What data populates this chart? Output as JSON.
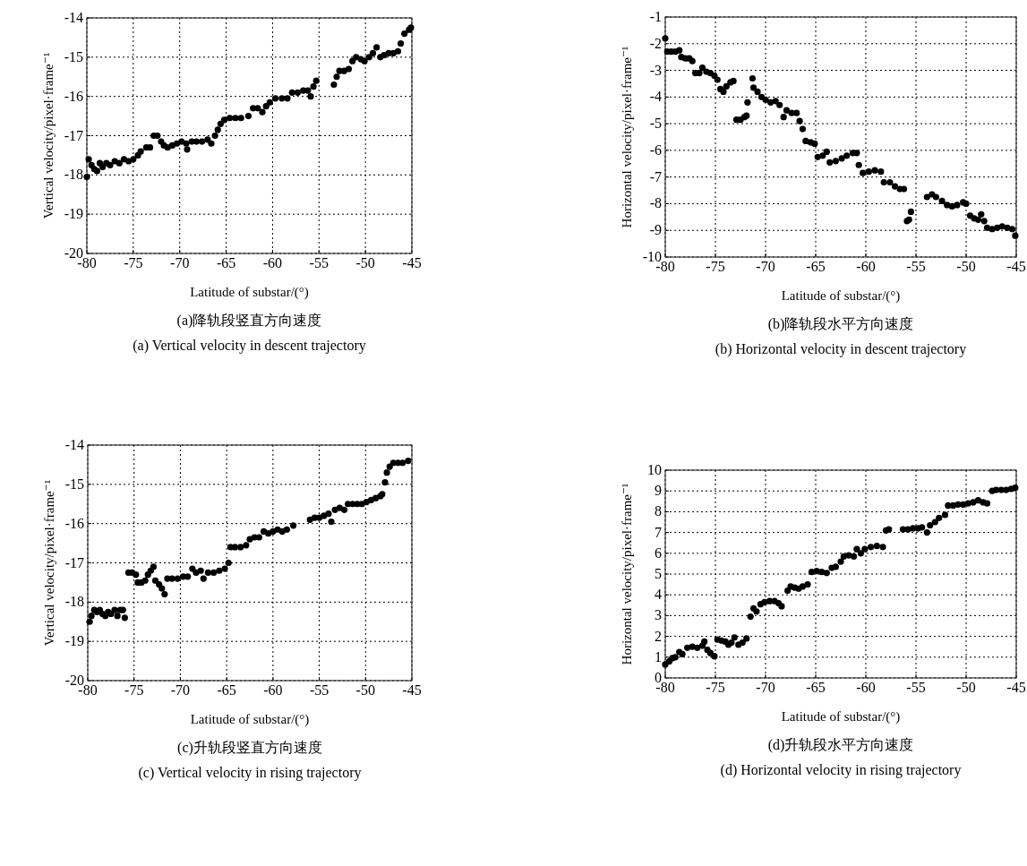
{
  "chart_data": [
    {
      "type": "scatter",
      "xlabel": "Latitude of substar/(°)",
      "ylabel": "Vertical velocity/pixel·frame⁻¹",
      "annotations": [
        "(a)降轨段竖直方向速度",
        "(a) Vertical velocity in descent trajectory"
      ],
      "xlim": [
        -80,
        -45
      ],
      "ylim": [
        -20,
        -14
      ],
      "xticks": [
        -80,
        -75,
        -70,
        -65,
        -60,
        -55,
        -50,
        -45
      ],
      "yticks": [
        -20,
        -19,
        -18,
        -17,
        -16,
        -15,
        -14
      ],
      "grid": true,
      "marker": "circle",
      "x": [
        -80,
        -79.8,
        -79.5,
        -79.2,
        -78.9,
        -78.6,
        -78.3,
        -77.9,
        -77.5,
        -77,
        -76.5,
        -76,
        -75.5,
        -75,
        -74.5,
        -74.2,
        -73.6,
        -73.2,
        -72.8,
        -72.4,
        -72,
        -71.7,
        -71.3,
        -70.8,
        -70.3,
        -69.8,
        -69.3,
        -69.2,
        -68.7,
        -68.2,
        -67.6,
        -67,
        -66.6,
        -66.2,
        -65.9,
        -65.6,
        -65.2,
        -64.6,
        -64,
        -63.4,
        -62.6,
        -62.1,
        -61.6,
        -61.1,
        -60.7,
        -60.3,
        -59.7,
        -59,
        -58.4,
        -57.9,
        -57.3,
        -56.7,
        -56.2,
        -55.9,
        -55.6,
        -55.3,
        -53.4,
        -53.1,
        -52.8,
        -52.3,
        -51.8,
        -51.4,
        -51,
        -50.5,
        -50.1,
        -49.6,
        -49.2,
        -48.8,
        -48.4,
        -48,
        -47.5,
        -47,
        -46.5,
        -46.2,
        -45.8,
        -45.3,
        -45.1
      ],
      "series": [
        {
          "color": "#000000",
          "values": [
            -18.05,
            -17.6,
            -17.75,
            -17.85,
            -17.9,
            -17.7,
            -17.8,
            -17.7,
            -17.75,
            -17.65,
            -17.7,
            -17.6,
            -17.65,
            -17.6,
            -17.5,
            -17.4,
            -17.3,
            -17.3,
            -17.0,
            -17.0,
            -17.15,
            -17.25,
            -17.3,
            -17.25,
            -17.2,
            -17.15,
            -17.2,
            -17.35,
            -17.15,
            -17.15,
            -17.15,
            -17.1,
            -17.2,
            -17.0,
            -16.85,
            -16.7,
            -16.6,
            -16.55,
            -16.55,
            -16.55,
            -16.5,
            -16.3,
            -16.3,
            -16.4,
            -16.25,
            -16.15,
            -16.05,
            -16.05,
            -16.05,
            -15.9,
            -15.9,
            -15.85,
            -15.85,
            -16.0,
            -15.75,
            -15.6,
            -15.7,
            -15.5,
            -15.35,
            -15.35,
            -15.3,
            -15.1,
            -15.0,
            -15.05,
            -15.1,
            -15.0,
            -14.9,
            -14.75,
            -15.0,
            -14.95,
            -14.9,
            -14.9,
            -14.85,
            -14.65,
            -14.4,
            -14.3,
            -14.25
          ]
        }
      ]
    },
    {
      "type": "scatter",
      "xlabel": "Latitude of substar/(°)",
      "ylabel": "Horizontal velocity/pixel·frame⁻¹",
      "annotations": [
        "(b)降轨段水平方向速度",
        "(b) Horizontal velocity in descent trajectory"
      ],
      "xlim": [
        -80,
        -45
      ],
      "ylim": [
        -10,
        -1
      ],
      "xticks": [
        -80,
        -75,
        -70,
        -65,
        -60,
        -55,
        -50,
        -45
      ],
      "yticks": [
        -10,
        -9,
        -8,
        -7,
        -6,
        -5,
        -4,
        -3,
        -2,
        -1
      ],
      "grid": true,
      "marker": "circle",
      "x": [
        -80,
        -79.8,
        -79.4,
        -79,
        -78.6,
        -78.4,
        -78,
        -77.6,
        -77.3,
        -77,
        -76.6,
        -76.3,
        -75.9,
        -75.5,
        -75.1,
        -74.8,
        -74.5,
        -74.2,
        -73.9,
        -73.5,
        -73.2,
        -72.9,
        -72.5,
        -72.1,
        -71.9,
        -71.8,
        -71.3,
        -71.2,
        -70.8,
        -70.4,
        -70,
        -69.5,
        -69,
        -68.6,
        -68.2,
        -67.9,
        -67.4,
        -66.9,
        -66.6,
        -66.3,
        -66,
        -65.5,
        -65.1,
        -64.8,
        -64.3,
        -63.9,
        -63.6,
        -63,
        -62.4,
        -61.9,
        -61.3,
        -60.9,
        -60.7,
        -60.3,
        -59.7,
        -59.1,
        -58.5,
        -58.2,
        -57.6,
        -57.1,
        -56.6,
        -56.2,
        -55.9,
        -55.7,
        -55.5,
        -53.9,
        -53.4,
        -53,
        -52.4,
        -51.9,
        -51.4,
        -50.9,
        -50.3,
        -50,
        -49.6,
        -49.2,
        -48.8,
        -48.5,
        -48.2,
        -47.9,
        -47.4,
        -46.9,
        -46.4,
        -45.9,
        -45.4,
        -45.1
      ],
      "series": [
        {
          "color": "#000000",
          "values": [
            -1.8,
            -2.3,
            -2.3,
            -2.3,
            -2.25,
            -2.5,
            -2.55,
            -2.55,
            -2.65,
            -3.1,
            -3.1,
            -2.9,
            -3.05,
            -3.1,
            -3.2,
            -3.35,
            -3.7,
            -3.8,
            -3.6,
            -3.45,
            -3.4,
            -4.85,
            -4.85,
            -4.75,
            -4.7,
            -4.2,
            -3.3,
            -3.65,
            -3.8,
            -4.0,
            -4.1,
            -4.2,
            -4.15,
            -4.3,
            -4.75,
            -4.5,
            -4.6,
            -4.6,
            -4.9,
            -5.2,
            -5.65,
            -5.7,
            -5.75,
            -6.25,
            -6.2,
            -6.05,
            -6.45,
            -6.4,
            -6.3,
            -6.2,
            -6.1,
            -6.1,
            -6.55,
            -6.85,
            -6.8,
            -6.75,
            -6.8,
            -7.2,
            -7.2,
            -7.35,
            -7.45,
            -7.45,
            -8.65,
            -8.6,
            -8.3,
            -7.75,
            -7.65,
            -7.75,
            -7.9,
            -8.05,
            -8.1,
            -8.05,
            -7.95,
            -8.0,
            -8.45,
            -8.55,
            -8.6,
            -8.4,
            -8.65,
            -8.9,
            -8.95,
            -8.9,
            -8.85,
            -8.9,
            -8.95,
            -9.2
          ]
        }
      ]
    },
    {
      "type": "scatter",
      "xlabel": "Latitude of substar/(°)",
      "ylabel": "Vertical velocity/pixel·frame⁻¹",
      "annotations": [
        "(c)升轨段竖直方向速度",
        "(c) Vertical velocity in rising trajectory"
      ],
      "xlim": [
        -80,
        -45
      ],
      "ylim": [
        -20,
        -14
      ],
      "xticks": [
        -80,
        -75,
        -70,
        -65,
        -60,
        -55,
        -50,
        -45
      ],
      "yticks": [
        -20,
        -19,
        -18,
        -17,
        -16,
        -15,
        -14
      ],
      "grid": true,
      "marker": "circle",
      "x": [
        -79.8,
        -79.6,
        -79.3,
        -79,
        -78.7,
        -78.4,
        -78.1,
        -77.8,
        -77.5,
        -77.1,
        -76.8,
        -76.5,
        -76.2,
        -76,
        -75.6,
        -75.2,
        -74.8,
        -74.6,
        -74.2,
        -73.8,
        -73.5,
        -73.2,
        -72.9,
        -72.7,
        -72.3,
        -72,
        -71.7,
        -71.4,
        -70.9,
        -70.3,
        -69.7,
        -69.2,
        -68.7,
        -68.3,
        -67.8,
        -67.5,
        -67,
        -66.4,
        -65.8,
        -65.2,
        -64.8,
        -64.6,
        -64.1,
        -63.5,
        -62.9,
        -62.5,
        -62,
        -61.5,
        -61,
        -60.5,
        -60,
        -59.5,
        -59,
        -58.5,
        -57.8,
        -56,
        -55.5,
        -55,
        -54.5,
        -54,
        -53.7,
        -53.3,
        -52.8,
        -52.3,
        -51.9,
        -51.4,
        -50.9,
        -50.4,
        -49.9,
        -49.4,
        -48.9,
        -48.4,
        -48.2,
        -47.9,
        -47.7,
        -47.4,
        -47,
        -46.5,
        -46,
        -45.4
      ],
      "series": [
        {
          "color": "#000000",
          "values": [
            -18.5,
            -18.35,
            -18.2,
            -18.25,
            -18.2,
            -18.3,
            -18.35,
            -18.25,
            -18.3,
            -18.2,
            -18.35,
            -18.2,
            -18.2,
            -18.4,
            -17.25,
            -17.25,
            -17.3,
            -17.5,
            -17.5,
            -17.45,
            -17.3,
            -17.2,
            -17.1,
            -17.45,
            -17.55,
            -17.65,
            -17.8,
            -17.4,
            -17.4,
            -17.4,
            -17.35,
            -17.35,
            -17.15,
            -17.25,
            -17.2,
            -17.4,
            -17.25,
            -17.25,
            -17.2,
            -17.15,
            -17.0,
            -16.6,
            -16.6,
            -16.6,
            -16.55,
            -16.4,
            -16.35,
            -16.35,
            -16.2,
            -16.25,
            -16.2,
            -16.15,
            -16.2,
            -16.15,
            -16.05,
            -15.9,
            -15.85,
            -15.85,
            -15.8,
            -15.75,
            -15.95,
            -15.65,
            -15.6,
            -15.65,
            -15.5,
            -15.5,
            -15.5,
            -15.5,
            -15.45,
            -15.4,
            -15.35,
            -15.3,
            -15.25,
            -14.95,
            -14.7,
            -14.55,
            -14.45,
            -14.45,
            -14.45,
            -14.4
          ]
        }
      ]
    },
    {
      "type": "scatter",
      "xlabel": "Latitude of substar/(°)",
      "ylabel": "Horizontal velocity/pixel·frame⁻¹",
      "annotations": [
        "(d)升轨段水平方向速度",
        "(d) Horizontal velocity in rising trajectory"
      ],
      "xlim": [
        -80,
        -45
      ],
      "ylim": [
        0,
        10
      ],
      "xticks": [
        -80,
        -75,
        -70,
        -65,
        -60,
        -55,
        -50,
        -45
      ],
      "yticks": [
        0,
        1,
        2,
        3,
        4,
        5,
        6,
        7,
        8,
        9,
        10
      ],
      "grid": true,
      "marker": "circle",
      "x": [
        -80,
        -79.6,
        -79.3,
        -79,
        -78.6,
        -78.3,
        -77.8,
        -77.3,
        -76.8,
        -76.3,
        -76.1,
        -75.8,
        -75.5,
        -75.1,
        -74.8,
        -74.4,
        -74,
        -73.7,
        -73.4,
        -73.1,
        -72.7,
        -72.3,
        -71.9,
        -71.5,
        -71.2,
        -70.9,
        -70.5,
        -70.1,
        -69.6,
        -69.1,
        -68.7,
        -68.4,
        -67.8,
        -67.5,
        -67.1,
        -66.7,
        -66.3,
        -65.8,
        -65.4,
        -64.9,
        -64.4,
        -63.9,
        -63.4,
        -63,
        -62.5,
        -62.2,
        -61.7,
        -61.2,
        -60.9,
        -60.5,
        -60.1,
        -59.5,
        -58.9,
        -58.3,
        -58,
        -57.7,
        -56.3,
        -55.8,
        -55.3,
        -54.8,
        -54.4,
        -53.9,
        -53.6,
        -53.1,
        -52.7,
        -52.1,
        -51.8,
        -51.3,
        -50.8,
        -50.3,
        -49.8,
        -49.3,
        -48.8,
        -48.3,
        -47.9,
        -47.4,
        -47,
        -46.5,
        -46,
        -45.5,
        -45.1
      ],
      "series": [
        {
          "color": "#000000",
          "values": [
            0.65,
            0.8,
            0.95,
            1.0,
            1.25,
            1.15,
            1.45,
            1.5,
            1.45,
            1.55,
            1.75,
            1.35,
            1.2,
            1.05,
            1.85,
            1.8,
            1.75,
            1.6,
            1.7,
            1.95,
            1.6,
            1.7,
            1.9,
            2.95,
            3.35,
            3.2,
            3.55,
            3.65,
            3.7,
            3.7,
            3.6,
            3.45,
            4.2,
            4.4,
            4.35,
            4.3,
            4.4,
            4.5,
            5.1,
            5.15,
            5.1,
            5.05,
            5.3,
            5.35,
            5.6,
            5.85,
            5.9,
            5.85,
            6.2,
            6.0,
            6.2,
            6.3,
            6.35,
            6.3,
            7.1,
            7.15,
            7.15,
            7.15,
            7.2,
            7.2,
            7.25,
            7.0,
            7.35,
            7.5,
            7.7,
            7.85,
            8.3,
            8.3,
            8.35,
            8.35,
            8.4,
            8.45,
            8.55,
            8.45,
            8.4,
            9.0,
            9.05,
            9.05,
            9.05,
            9.1,
            9.15
          ]
        }
      ]
    }
  ]
}
